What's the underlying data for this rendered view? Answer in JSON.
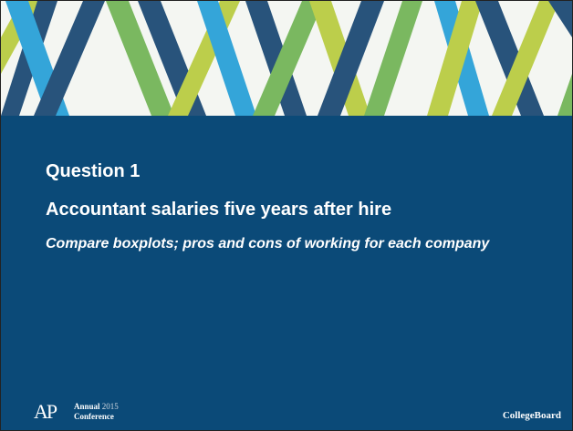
{
  "slide": {
    "title": "Question 1",
    "subtitle": "Accountant salaries five years after hire",
    "description": "Compare boxplots; pros and cons of working for each company"
  },
  "footer": {
    "logo": "AP",
    "event_word": "Annual",
    "year": "2015",
    "event_line2": "Conference",
    "brand": "CollegeBoard"
  }
}
